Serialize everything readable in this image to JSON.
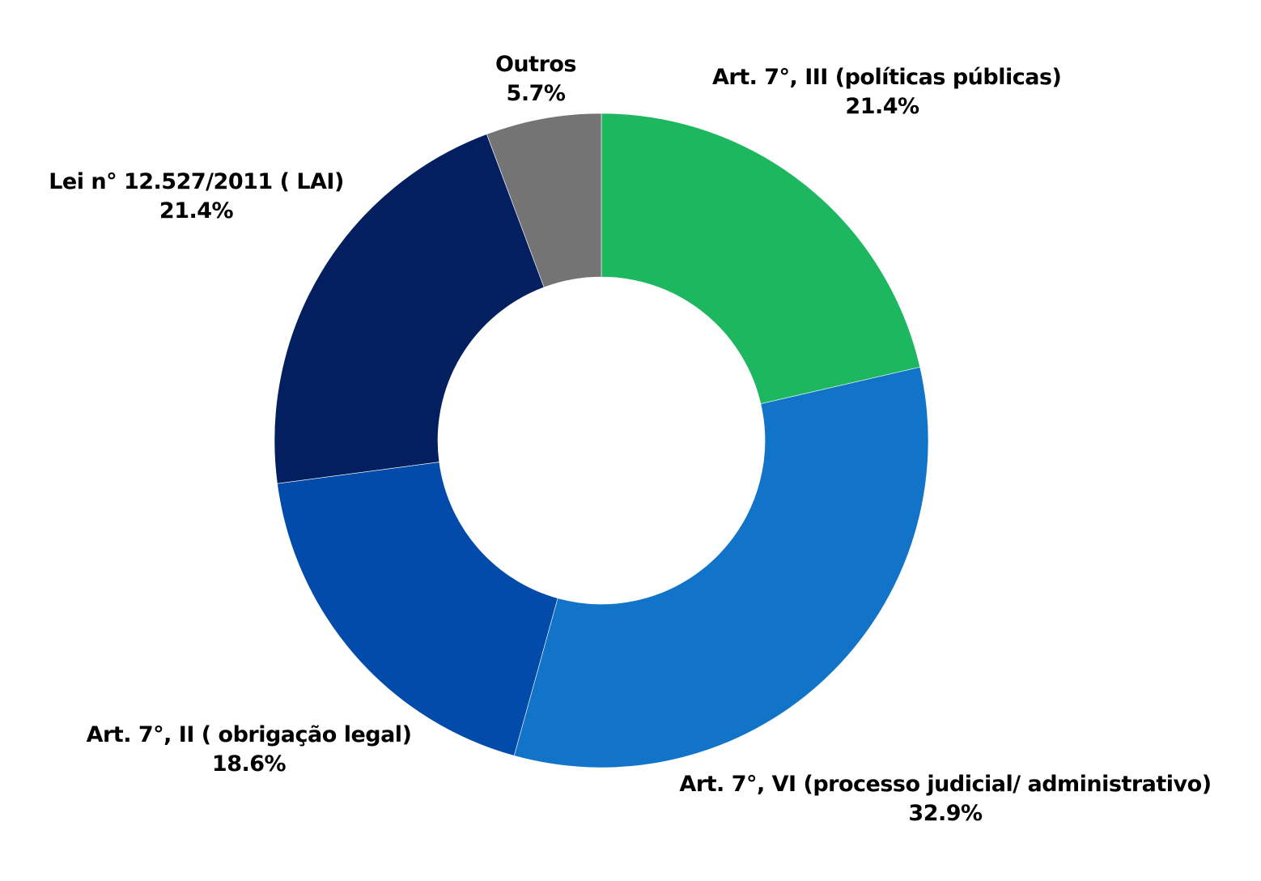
{
  "chart_data": {
    "type": "pie",
    "variant": "donut",
    "title": "",
    "start_angle": "12 o'clock, clockwise",
    "slices": [
      {
        "label": "Art. 7°, III (políticas públicas)",
        "value": 21.4,
        "value_label": "21.4%",
        "color": "#1db760"
      },
      {
        "label": "Art. 7°, VI (processo judicial/ administrativo)",
        "value": 32.9,
        "value_label": "32.9%",
        "color": "#1174c9"
      },
      {
        "label": "Art. 7°, II ( obrigação legal)",
        "value": 18.6,
        "value_label": "18.6%",
        "color": "#024bab"
      },
      {
        "label": "Lei n° 12.527/2011 ( LAI)",
        "value": 21.4,
        "value_label": "21.4%",
        "color": "#041f5f"
      },
      {
        "label": "Outros",
        "value": 5.7,
        "value_label": "5.7%",
        "color": "#747474"
      }
    ],
    "legend": "none (direct labels)",
    "center": [
      743,
      544
    ],
    "outer_radius": 404,
    "inner_radius": 202
  }
}
